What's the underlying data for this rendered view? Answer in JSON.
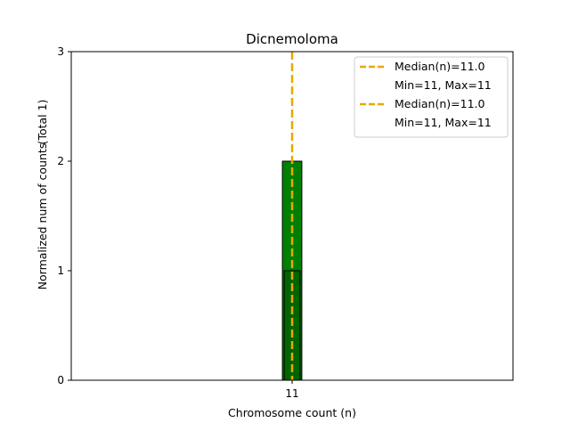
{
  "chart_data": {
    "type": "bar",
    "title": "Dicnemoloma",
    "xlabel": "Chromosome count (n)",
    "ylabel": "Normalized num of counts",
    "ylabel_total": "(Total 1)",
    "categories": [
      "11"
    ],
    "xlim": [
      8.5,
      13.5
    ],
    "ylim": [
      0,
      3
    ],
    "yticks": [
      0,
      1,
      2,
      3
    ],
    "grid": false,
    "legend_position": "top-right",
    "series": [
      {
        "x": 11,
        "value": 2,
        "width": 0.22,
        "color": "#008000"
      },
      {
        "x": 11,
        "value": 1,
        "width": 0.18,
        "color": "#006400"
      }
    ],
    "median_line": {
      "x": 11,
      "color": "#E8A800"
    },
    "baseline_range": [
      8.5,
      11.8
    ],
    "legend": [
      {
        "label": "Median(n)=11.0",
        "sub": "Min=11, Max=11",
        "color": "#E8A800"
      },
      {
        "label": "Median(n)=11.0",
        "sub": "Min=11, Max=11",
        "color": "#E8A800"
      }
    ]
  }
}
